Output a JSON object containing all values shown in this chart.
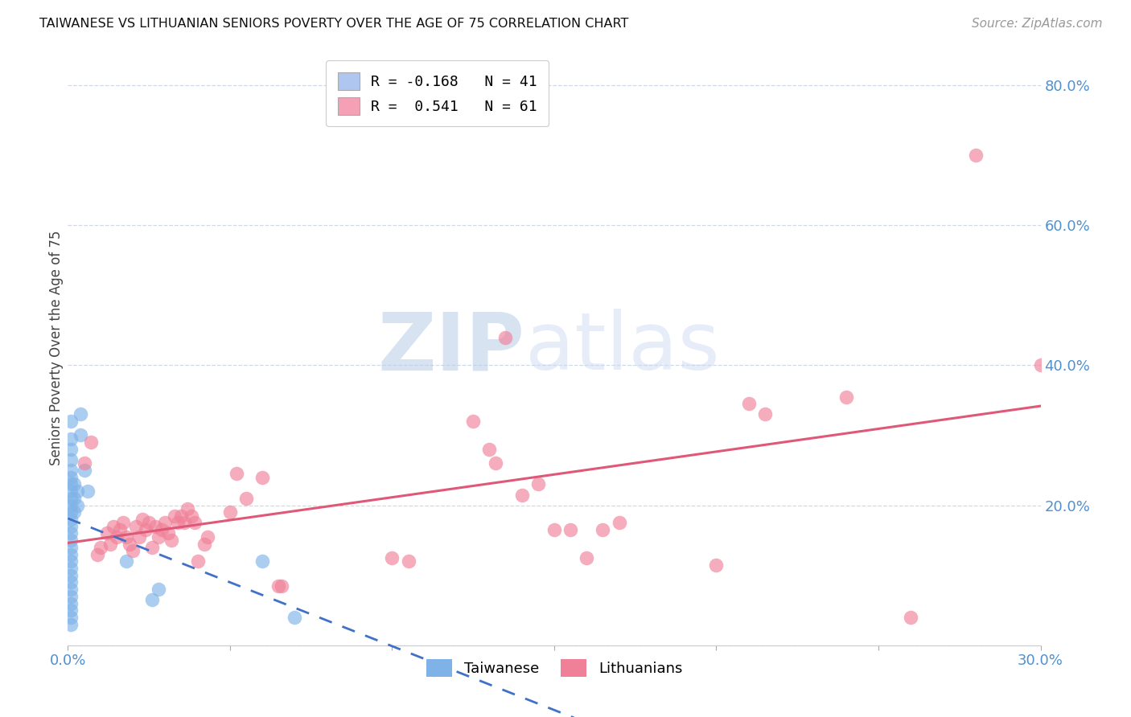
{
  "title": "TAIWANESE VS LITHUANIAN SENIORS POVERTY OVER THE AGE OF 75 CORRELATION CHART",
  "source": "Source: ZipAtlas.com",
  "ylabel": "Seniors Poverty Over the Age of 75",
  "xlim": [
    0.0,
    0.3
  ],
  "ylim": [
    0.0,
    0.85
  ],
  "xticks": [
    0.0,
    0.05,
    0.1,
    0.15,
    0.2,
    0.25,
    0.3
  ],
  "xtick_labels": [
    "0.0%",
    "",
    "",
    "",
    "",
    "",
    "30.0%"
  ],
  "yticks": [
    0.0,
    0.2,
    0.4,
    0.6,
    0.8
  ],
  "ytick_labels": [
    "",
    "20.0%",
    "40.0%",
    "60.0%",
    "80.0%"
  ],
  "legend_label1": "R = -0.168   N = 41",
  "legend_label2": "R =  0.541   N = 61",
  "legend_color1": "#aec6f0",
  "legend_color2": "#f5a0b5",
  "watermark_zip": "ZIP",
  "watermark_atlas": "atlas",
  "taiwanese_color": "#7fb3e8",
  "lithuanian_color": "#f08098",
  "taiwanese_line_color": "#4070c8",
  "lithuanian_line_color": "#e05878",
  "background_color": "#ffffff",
  "grid_color": "#d0d8e8",
  "tick_color": "#5090d0",
  "taiwanese_points": [
    [
      0.001,
      0.32
    ],
    [
      0.001,
      0.295
    ],
    [
      0.001,
      0.28
    ],
    [
      0.001,
      0.265
    ],
    [
      0.001,
      0.25
    ],
    [
      0.001,
      0.24
    ],
    [
      0.001,
      0.23
    ],
    [
      0.001,
      0.22
    ],
    [
      0.001,
      0.21
    ],
    [
      0.001,
      0.2
    ],
    [
      0.001,
      0.19
    ],
    [
      0.001,
      0.18
    ],
    [
      0.001,
      0.17
    ],
    [
      0.001,
      0.16
    ],
    [
      0.001,
      0.15
    ],
    [
      0.001,
      0.14
    ],
    [
      0.001,
      0.13
    ],
    [
      0.001,
      0.12
    ],
    [
      0.001,
      0.11
    ],
    [
      0.001,
      0.1
    ],
    [
      0.001,
      0.09
    ],
    [
      0.001,
      0.08
    ],
    [
      0.001,
      0.07
    ],
    [
      0.001,
      0.06
    ],
    [
      0.001,
      0.05
    ],
    [
      0.001,
      0.04
    ],
    [
      0.001,
      0.03
    ],
    [
      0.002,
      0.23
    ],
    [
      0.002,
      0.21
    ],
    [
      0.002,
      0.19
    ],
    [
      0.003,
      0.22
    ],
    [
      0.003,
      0.2
    ],
    [
      0.004,
      0.33
    ],
    [
      0.004,
      0.3
    ],
    [
      0.005,
      0.25
    ],
    [
      0.006,
      0.22
    ],
    [
      0.018,
      0.12
    ],
    [
      0.026,
      0.065
    ],
    [
      0.028,
      0.08
    ],
    [
      0.06,
      0.12
    ],
    [
      0.07,
      0.04
    ]
  ],
  "lithuanian_points": [
    [
      0.005,
      0.26
    ],
    [
      0.007,
      0.29
    ],
    [
      0.009,
      0.13
    ],
    [
      0.01,
      0.14
    ],
    [
      0.012,
      0.16
    ],
    [
      0.013,
      0.145
    ],
    [
      0.014,
      0.17
    ],
    [
      0.015,
      0.155
    ],
    [
      0.016,
      0.165
    ],
    [
      0.017,
      0.175
    ],
    [
      0.018,
      0.155
    ],
    [
      0.019,
      0.145
    ],
    [
      0.02,
      0.135
    ],
    [
      0.021,
      0.17
    ],
    [
      0.022,
      0.155
    ],
    [
      0.023,
      0.18
    ],
    [
      0.024,
      0.165
    ],
    [
      0.025,
      0.175
    ],
    [
      0.026,
      0.14
    ],
    [
      0.027,
      0.17
    ],
    [
      0.028,
      0.155
    ],
    [
      0.029,
      0.165
    ],
    [
      0.03,
      0.175
    ],
    [
      0.031,
      0.16
    ],
    [
      0.032,
      0.15
    ],
    [
      0.033,
      0.185
    ],
    [
      0.034,
      0.175
    ],
    [
      0.035,
      0.185
    ],
    [
      0.036,
      0.175
    ],
    [
      0.037,
      0.195
    ],
    [
      0.038,
      0.185
    ],
    [
      0.039,
      0.175
    ],
    [
      0.04,
      0.12
    ],
    [
      0.042,
      0.145
    ],
    [
      0.043,
      0.155
    ],
    [
      0.05,
      0.19
    ],
    [
      0.052,
      0.245
    ],
    [
      0.055,
      0.21
    ],
    [
      0.06,
      0.24
    ],
    [
      0.065,
      0.085
    ],
    [
      0.066,
      0.085
    ],
    [
      0.1,
      0.125
    ],
    [
      0.105,
      0.12
    ],
    [
      0.125,
      0.32
    ],
    [
      0.13,
      0.28
    ],
    [
      0.132,
      0.26
    ],
    [
      0.135,
      0.44
    ],
    [
      0.14,
      0.215
    ],
    [
      0.145,
      0.23
    ],
    [
      0.15,
      0.165
    ],
    [
      0.155,
      0.165
    ],
    [
      0.16,
      0.125
    ],
    [
      0.165,
      0.165
    ],
    [
      0.17,
      0.175
    ],
    [
      0.2,
      0.115
    ],
    [
      0.21,
      0.345
    ],
    [
      0.215,
      0.33
    ],
    [
      0.24,
      0.355
    ],
    [
      0.26,
      0.04
    ],
    [
      0.28,
      0.7
    ],
    [
      0.3,
      0.4
    ]
  ]
}
